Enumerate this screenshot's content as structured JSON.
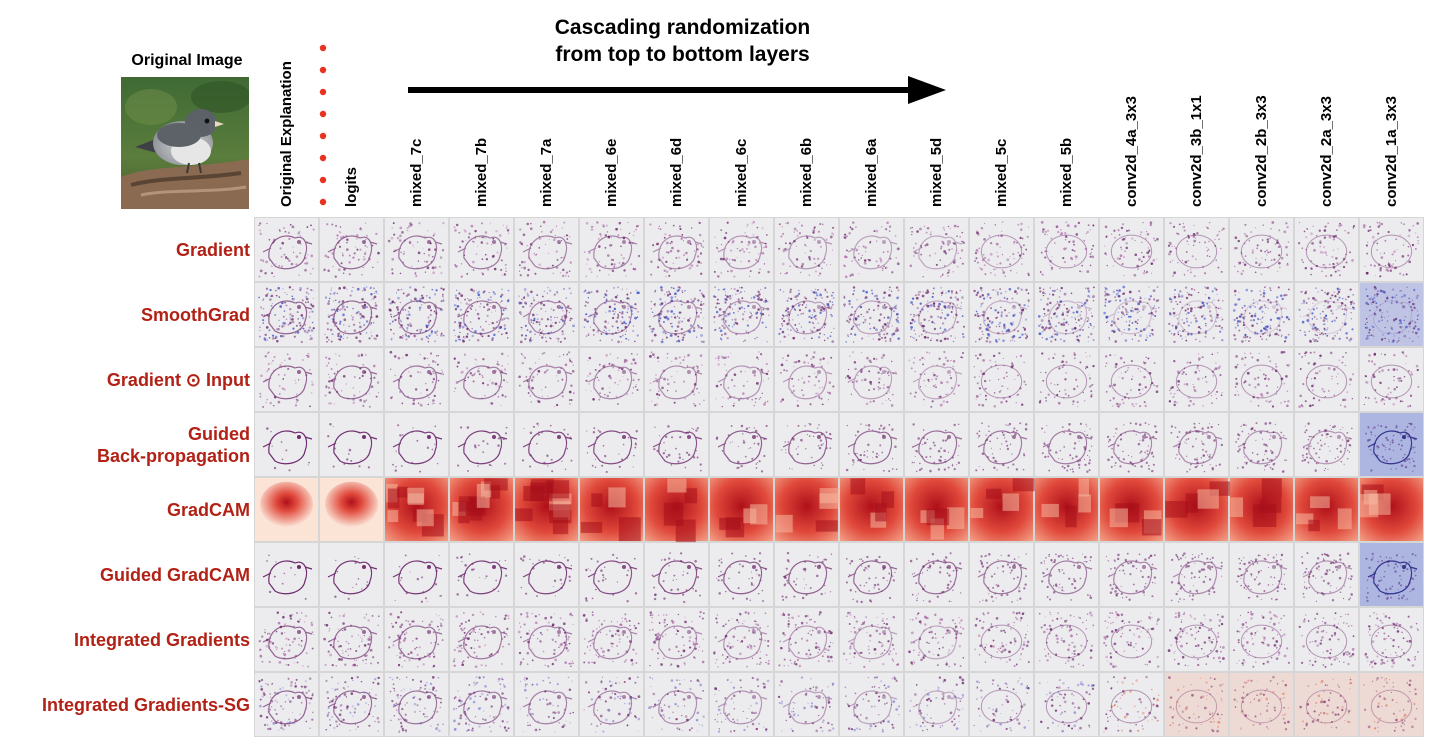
{
  "original_image_title": "Original Image",
  "cascade_title_line1": "Cascading randomization",
  "cascade_title_line2": "from top to bottom layers",
  "columns": [
    "Original Explanation",
    "logits",
    "mixed_7c",
    "mixed_7b",
    "mixed_7a",
    "mixed_6e",
    "mixed_6d",
    "mixed_6c",
    "mixed_6b",
    "mixed_6a",
    "mixed_5d",
    "mixed_5c",
    "mixed_5b",
    "conv2d_4a_3x3",
    "conv2d_3b_1x1",
    "conv2d_2b_3x3",
    "conv2d_2a_3x3",
    "conv2d_1a_3x3"
  ],
  "rows": [
    {
      "label_lines": [
        "Gradient"
      ],
      "kind": "noise",
      "tint": "purple"
    },
    {
      "label_lines": [
        "SmoothGrad"
      ],
      "kind": "noise",
      "tint": "purple-blue"
    },
    {
      "label_lines": [
        "Gradient ⊙ Input"
      ],
      "kind": "noise",
      "tint": "purple"
    },
    {
      "label_lines": [
        "Guided",
        "Back-propagation"
      ],
      "kind": "sketch",
      "tint": "purple"
    },
    {
      "label_lines": [
        "GradCAM"
      ],
      "kind": "heatmap",
      "tint": "red"
    },
    {
      "label_lines": [
        "Guided GradCAM"
      ],
      "kind": "sketch",
      "tint": "purple"
    },
    {
      "label_lines": [
        "Integrated Gradients"
      ],
      "kind": "noise",
      "tint": "purple"
    },
    {
      "label_lines": [
        "Integrated Gradients-SG"
      ],
      "kind": "noise",
      "tint": "purple-orange"
    }
  ],
  "colors": {
    "row_label": "#b22115",
    "dots": "#e8311f",
    "arrow": "#000000",
    "heat_peak": "#b0101a",
    "heat_low": "#fbe3d6",
    "attr_purple": "#6e2a6e",
    "attr_blue": "#3a4fc8",
    "attr_red": "#d04a3a",
    "tile_bg": "#ecebee"
  }
}
